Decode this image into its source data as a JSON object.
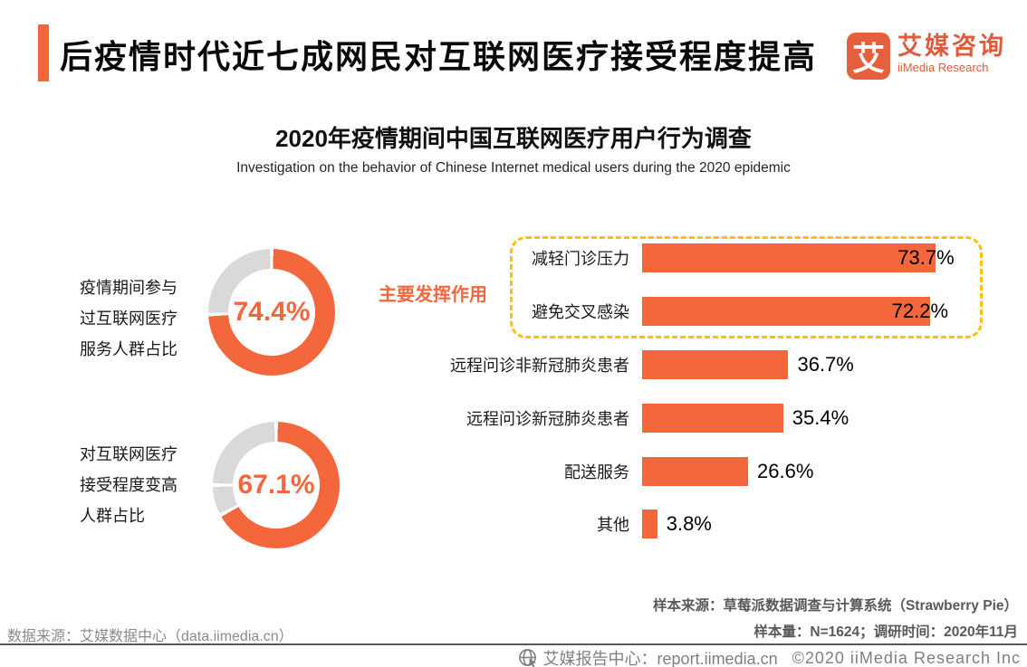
{
  "header": {
    "title": "后疫情时代近七成网民对互联网医疗接受程度提高",
    "logo": {
      "glyph": "艾",
      "name_cn": "艾媒咨询",
      "name_en": "iiMedia Research"
    }
  },
  "survey": {
    "title": "2020年疫情期间中国互联网医疗用户行为调查",
    "subtitle": "Investigation on the behavior of Chinese Internet medical users during the 2020 epidemic"
  },
  "chart_data": [
    {
      "type": "pie",
      "subtype": "donut",
      "label": "疫情期间参与过互联网医疗服务人群占比",
      "label_lines": [
        "疫情期间参与",
        "过互联网医疗",
        "服务人群占比"
      ],
      "value_pct": 74.4,
      "value_label": "74.4%",
      "fill_color": "#F4673C",
      "rest_color": "#D9D9D9"
    },
    {
      "type": "pie",
      "subtype": "donut",
      "label": "对互联网医疗接受程度变高人群占比",
      "label_lines": [
        "对互联网医疗",
        "接受程度变高",
        "人群占比"
      ],
      "value_pct": 67.1,
      "value_label": "67.1%",
      "gray_divider_pct": 75,
      "fill_color": "#F4673C",
      "rest_color": "#D9D9D9"
    },
    {
      "type": "bar",
      "orientation": "horizontal",
      "annotation": "主要发挥作用",
      "annotation_covers": [
        "减轻门诊压力",
        "避免交叉感染"
      ],
      "categories": [
        "减轻门诊压力",
        "避免交叉感染",
        "远程问诊非新冠肺炎患者",
        "远程问诊新冠肺炎患者",
        "配送服务",
        "其他"
      ],
      "values": [
        73.7,
        72.2,
        36.7,
        35.4,
        26.6,
        3.8
      ],
      "value_labels": [
        "73.7%",
        "72.2%",
        "36.7%",
        "35.4%",
        "26.6%",
        "3.8%"
      ],
      "value_label_overlaps_bar": [
        true,
        true,
        false,
        false,
        false,
        false
      ],
      "bar_color": "#F4673C",
      "xlim": [
        0,
        80
      ],
      "grid": false,
      "legend": false
    }
  ],
  "notes": {
    "sample_source": "样本来源：草莓派数据调查与计算系统（Strawberry Pie）",
    "sample_size": "样本量：N=1624；调研时间：2020年11月",
    "data_source": "数据来源：艾媒数据中心（data.iimedia.cn）"
  },
  "footer": {
    "report_center": "艾媒报告中心：report.iimedia.cn",
    "copyright": "©2020  iiMedia Research Inc"
  },
  "colors": {
    "accent_orange": "#F4673C",
    "highlight_gold": "#FFC000",
    "donut_rest_gray": "#D9D9D9",
    "note_gray": "#595959",
    "footer_gray": "#7F7F7F"
  }
}
